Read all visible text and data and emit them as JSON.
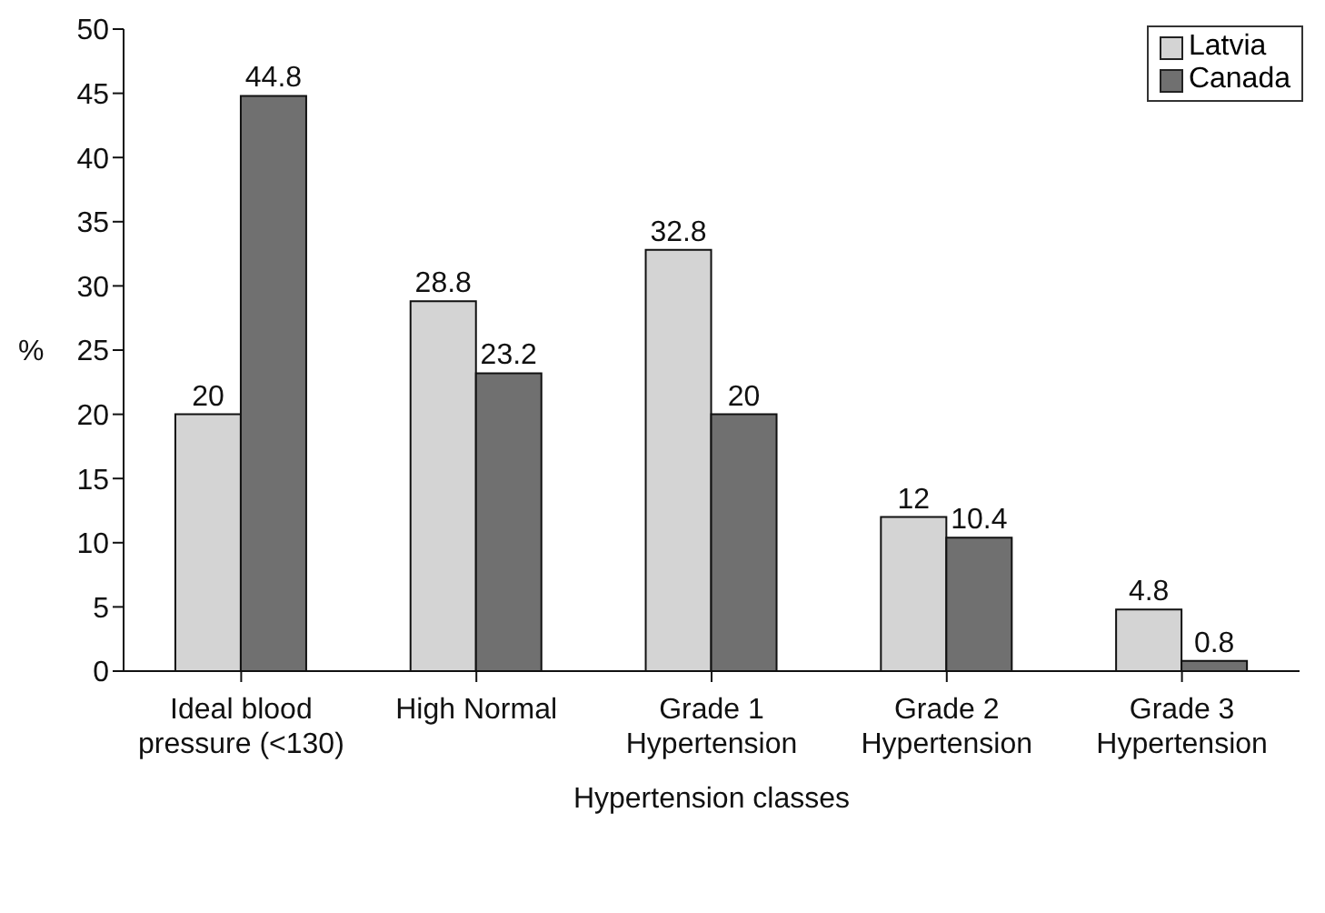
{
  "chart_data": {
    "type": "bar",
    "xlabel": "Hypertension classes",
    "ylabel": "%",
    "categories": [
      "Ideal blood\npressure (<130)",
      "High Normal",
      "Grade 1\nHypertension",
      "Grade 2\nHypertension",
      "Grade 3\nHypertension"
    ],
    "series": [
      {
        "name": "Latvia",
        "color": "#d4d4d4",
        "values": [
          20,
          28.8,
          32.8,
          12,
          4.8
        ]
      },
      {
        "name": "Canada",
        "color": "#707070",
        "values": [
          44.8,
          23.2,
          20,
          10.4,
          0.8
        ]
      }
    ],
    "ylim": [
      0,
      50
    ],
    "yticks": [
      0,
      5,
      10,
      15,
      20,
      25,
      30,
      35,
      40,
      45,
      50
    ],
    "data_labels": true,
    "grid": false,
    "legend": "top right"
  }
}
